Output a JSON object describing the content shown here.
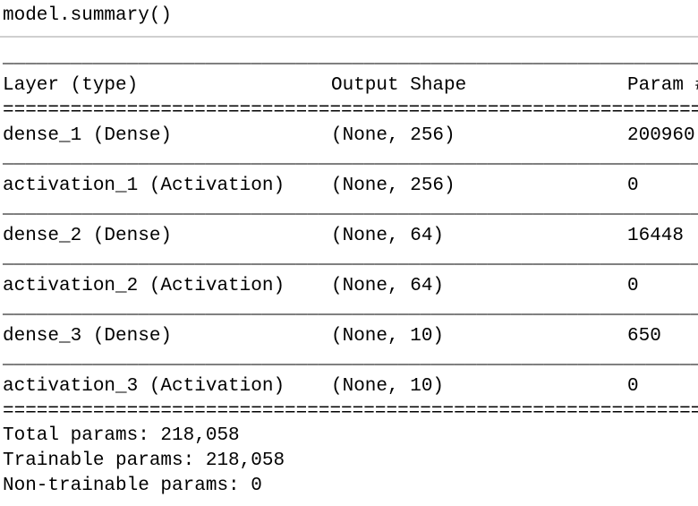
{
  "cell": {
    "code": "model.summary()"
  },
  "output": {
    "rule_light": "_________________________________________________________________",
    "rule_heavy": "=================================================================",
    "header": [
      "Layer (type)",
      "Output Shape",
      "Param #"
    ],
    "rows": [
      [
        "dense_1 (Dense)",
        "(None, 256)",
        "200960"
      ],
      [
        "activation_1 (Activation)",
        "(None, 256)",
        "0"
      ],
      [
        "dense_2 (Dense)",
        "(None, 64)",
        "16448"
      ],
      [
        "activation_2 (Activation)",
        "(None, 64)",
        "0"
      ],
      [
        "dense_3 (Dense)",
        "(None, 10)",
        "650"
      ],
      [
        "activation_3 (Activation)",
        "(None, 10)",
        "0"
      ]
    ],
    "totals": [
      "Total params: 218,058",
      "Trainable params: 218,058",
      "Non-trainable params: 0"
    ]
  }
}
